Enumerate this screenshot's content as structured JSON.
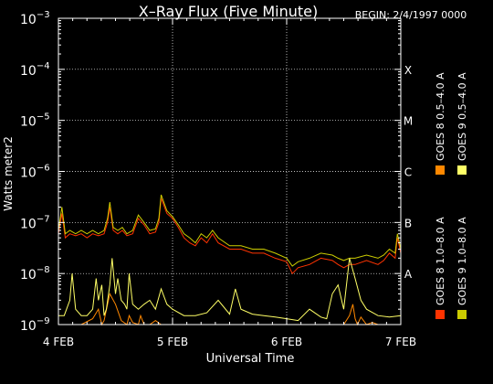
{
  "chart_data": {
    "type": "line",
    "title": "X–Ray Flux (Five Minute)",
    "begin_label": "BEGIN: 2/4/1997 0000",
    "xlabel": "Universal Time",
    "ylabel": "Watts meter2",
    "xlim": [
      0,
      3
    ],
    "x_ticks": [
      {
        "value": 0,
        "label": "4 FEB"
      },
      {
        "value": 1,
        "label": "5 FEB"
      },
      {
        "value": 2,
        "label": "6 FEB"
      },
      {
        "value": 3,
        "label": "7 FEB"
      }
    ],
    "y_scale": "log",
    "ylim": [
      1e-09,
      0.001
    ],
    "y_ticks": [
      {
        "exp": -9,
        "base": "10",
        "sup": "−9"
      },
      {
        "exp": -8,
        "base": "10",
        "sup": "−8"
      },
      {
        "exp": -7,
        "base": "10",
        "sup": "−7"
      },
      {
        "exp": -6,
        "base": "10",
        "sup": "−6"
      },
      {
        "exp": -5,
        "base": "10",
        "sup": "−5"
      },
      {
        "exp": -4,
        "base": "10",
        "sup": "−4"
      },
      {
        "exp": -3,
        "base": "10",
        "sup": "−3"
      }
    ],
    "flare_classes": [
      {
        "label": "A",
        "flux": 1e-08
      },
      {
        "label": "B",
        "flux": 1e-07
      },
      {
        "label": "C",
        "flux": 1e-06
      },
      {
        "label": "M",
        "flux": 1e-05
      },
      {
        "label": "X",
        "flux": 0.0001
      }
    ],
    "grid": true,
    "legend_position": "right, vertical",
    "series": [
      {
        "name": "GOES 8 1.0–8.0 A",
        "color": "#ff3300",
        "x": [
          0,
          0.03,
          0.06,
          0.1,
          0.15,
          0.2,
          0.25,
          0.3,
          0.35,
          0.4,
          0.43,
          0.45,
          0.48,
          0.52,
          0.56,
          0.6,
          0.65,
          0.7,
          0.75,
          0.8,
          0.85,
          0.88,
          0.9,
          0.95,
          1.0,
          1.05,
          1.1,
          1.15,
          1.2,
          1.25,
          1.3,
          1.35,
          1.4,
          1.5,
          1.6,
          1.7,
          1.8,
          1.9,
          2.0,
          2.05,
          2.1,
          2.2,
          2.3,
          2.4,
          2.45,
          2.5,
          2.55,
          2.6,
          2.7,
          2.8,
          2.85,
          2.9,
          2.95,
          2.97,
          3.0
        ],
        "values": [
          6e-08,
          1.5e-07,
          5e-08,
          6e-08,
          5.5e-08,
          6e-08,
          5e-08,
          6e-08,
          5.5e-08,
          6e-08,
          1e-07,
          2e-07,
          7e-08,
          6e-08,
          7e-08,
          5.5e-08,
          6e-08,
          1.2e-07,
          9e-08,
          6e-08,
          6.5e-08,
          1e-07,
          3e-07,
          1.5e-07,
          1.2e-07,
          8e-08,
          5e-08,
          4e-08,
          3.5e-08,
          5e-08,
          4e-08,
          6e-08,
          4e-08,
          3e-08,
          3e-08,
          2.5e-08,
          2.5e-08,
          2e-08,
          1.7e-08,
          1e-08,
          1.3e-08,
          1.5e-08,
          2e-08,
          1.8e-08,
          1.5e-08,
          1.3e-08,
          1.5e-08,
          1.5e-08,
          1.8e-08,
          1.5e-08,
          1.8e-08,
          2.5e-08,
          2e-08,
          5e-08,
          2.5e-08
        ]
      },
      {
        "name": "GOES 8 0.5–4.0 A",
        "color": "#ff8800",
        "x": [
          0.1,
          0.2,
          0.3,
          0.35,
          0.38,
          0.4,
          0.45,
          0.5,
          0.55,
          0.6,
          0.62,
          0.65,
          0.7,
          0.72,
          0.75,
          0.8,
          0.85,
          0.9,
          0.95,
          2.5,
          2.55,
          2.58,
          2.6,
          2.62,
          2.65,
          2.7,
          2.75,
          2.8
        ],
        "values": [
          1e-09,
          1e-09,
          1.3e-09,
          2e-09,
          1e-09,
          1.2e-09,
          4e-09,
          2.5e-09,
          1.2e-09,
          1e-09,
          1.5e-09,
          1.1e-09,
          1e-09,
          1.5e-09,
          1e-09,
          1e-09,
          1.2e-09,
          1e-09,
          1e-09,
          1e-09,
          1.5e-09,
          2.5e-09,
          1.3e-09,
          1e-09,
          1.4e-09,
          1e-09,
          1.1e-09,
          1e-09
        ]
      },
      {
        "name": "GOES 9 1.0–8.0 A",
        "color": "#cccc00",
        "x": [
          0,
          0.03,
          0.06,
          0.1,
          0.15,
          0.2,
          0.25,
          0.3,
          0.35,
          0.4,
          0.43,
          0.45,
          0.48,
          0.52,
          0.56,
          0.6,
          0.65,
          0.7,
          0.75,
          0.8,
          0.85,
          0.88,
          0.9,
          0.95,
          1.0,
          1.05,
          1.1,
          1.15,
          1.2,
          1.25,
          1.3,
          1.35,
          1.4,
          1.5,
          1.6,
          1.7,
          1.8,
          1.9,
          2.0,
          2.05,
          2.1,
          2.2,
          2.3,
          2.4,
          2.45,
          2.5,
          2.55,
          2.6,
          2.7,
          2.8,
          2.85,
          2.9,
          2.95,
          2.97,
          3.0
        ],
        "values": [
          7e-08,
          2e-07,
          6e-08,
          7e-08,
          6e-08,
          7e-08,
          6e-08,
          7e-08,
          6e-08,
          7e-08,
          1.2e-07,
          2.5e-07,
          8e-08,
          7e-08,
          8e-08,
          6e-08,
          7e-08,
          1.4e-07,
          1e-07,
          7e-08,
          7.5e-08,
          1.2e-07,
          3.5e-07,
          1.7e-07,
          1.3e-07,
          9e-08,
          6e-08,
          5e-08,
          4e-08,
          6e-08,
          5e-08,
          7e-08,
          5e-08,
          3.5e-08,
          3.5e-08,
          3e-08,
          3e-08,
          2.5e-08,
          2e-08,
          1.4e-08,
          1.7e-08,
          2e-08,
          2.5e-08,
          2.3e-08,
          2e-08,
          1.8e-08,
          2e-08,
          2e-08,
          2.3e-08,
          2e-08,
          2.3e-08,
          3e-08,
          2.5e-08,
          6e-08,
          3e-08
        ]
      },
      {
        "name": "GOES 9 0.5–4.0 A",
        "color": "#ffff66",
        "x": [
          0,
          0.05,
          0.1,
          0.12,
          0.15,
          0.2,
          0.25,
          0.3,
          0.33,
          0.35,
          0.38,
          0.4,
          0.42,
          0.45,
          0.47,
          0.5,
          0.52,
          0.55,
          0.58,
          0.6,
          0.62,
          0.65,
          0.7,
          0.75,
          0.8,
          0.85,
          0.9,
          0.95,
          1.0,
          1.1,
          1.2,
          1.3,
          1.4,
          1.5,
          1.55,
          1.6,
          1.7,
          1.8,
          1.9,
          2.0,
          2.1,
          2.2,
          2.3,
          2.35,
          2.4,
          2.45,
          2.5,
          2.55,
          2.6,
          2.65,
          2.7,
          2.8,
          2.9,
          3.0
        ],
        "values": [
          1.5e-09,
          1.5e-09,
          3e-09,
          1e-08,
          2e-09,
          1.5e-09,
          1.5e-09,
          2e-09,
          8e-09,
          3e-09,
          6e-09,
          1.5e-09,
          2e-09,
          6e-09,
          2e-08,
          4e-09,
          8e-09,
          3e-09,
          2.5e-09,
          2e-09,
          1e-08,
          2.5e-09,
          2e-09,
          2.5e-09,
          3e-09,
          2e-09,
          5e-09,
          2.5e-09,
          2e-09,
          1.5e-09,
          1.5e-09,
          1.7e-09,
          3e-09,
          1.6e-09,
          5e-09,
          2e-09,
          1.6e-09,
          1.5e-09,
          1.4e-09,
          1.3e-09,
          1.2e-09,
          2e-09,
          1.4e-09,
          1.3e-09,
          4e-09,
          6e-09,
          2e-09,
          2e-08,
          8e-09,
          3e-09,
          2e-09,
          1.5e-09,
          1.4e-09,
          1.5e-09
        ]
      }
    ]
  }
}
